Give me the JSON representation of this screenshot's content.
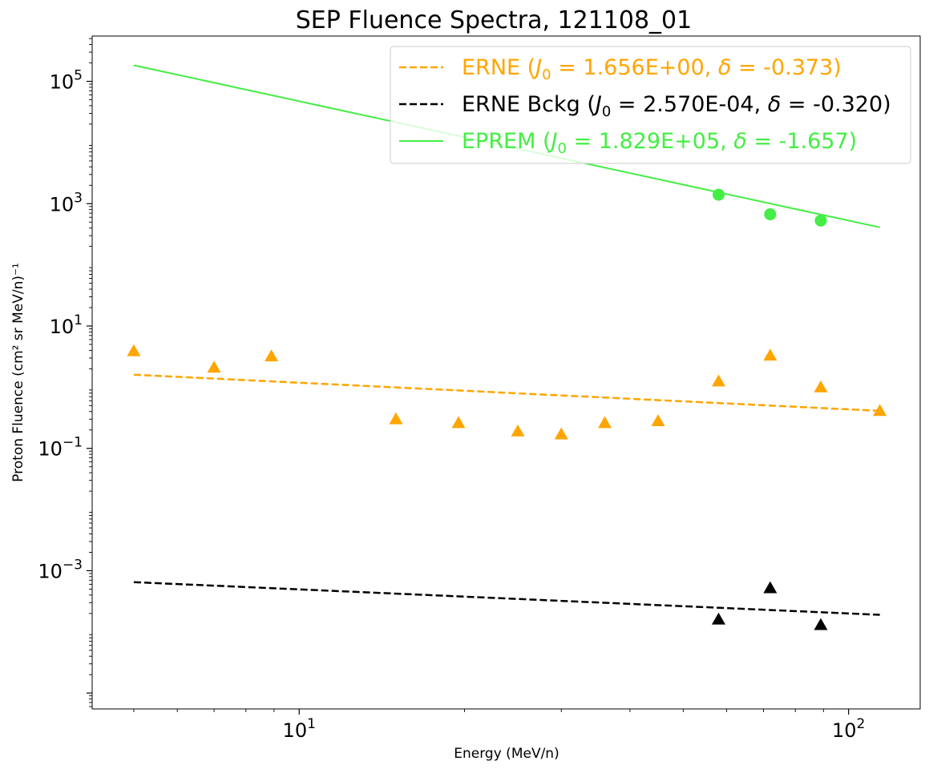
{
  "chart_data": {
    "type": "scatter",
    "title": "SEP Fluence Spectra, 121108_01",
    "xlabel": "Energy (MeV/n)",
    "ylabel": "Proton Fluence (cm² sr MeV/n)⁻¹",
    "xscale": "log",
    "yscale": "log",
    "xlim": [
      4.2,
      135
    ],
    "ylim": [
      5.5e-06,
      550000
    ],
    "x_ticks": [
      {
        "value": 10,
        "base": "10",
        "exp": "1"
      },
      {
        "value": 100,
        "base": "10",
        "exp": "2"
      }
    ],
    "y_ticks": [
      {
        "value": 0.001,
        "base": "10",
        "exp": "−3"
      },
      {
        "value": 0.1,
        "base": "10",
        "exp": "−1"
      },
      {
        "value": 10,
        "base": "10",
        "exp": "1"
      },
      {
        "value": 1000,
        "base": "10",
        "exp": "3"
      },
      {
        "value": 100000,
        "base": "10",
        "exp": "5"
      }
    ],
    "grid": false,
    "legend_position": "top-right",
    "series": [
      {
        "name": "ERNE (J₀ = 1.656E+00, δ = -0.373)",
        "color": "#ffa500",
        "marker": "triangle",
        "line_style": "dashed",
        "points": [
          {
            "x": 5.0,
            "y": 3.9
          },
          {
            "x": 7.0,
            "y": 2.1
          },
          {
            "x": 8.9,
            "y": 3.2
          },
          {
            "x": 15.0,
            "y": 0.3
          },
          {
            "x": 19.5,
            "y": 0.26
          },
          {
            "x": 25.0,
            "y": 0.19
          },
          {
            "x": 30.0,
            "y": 0.17
          },
          {
            "x": 36.0,
            "y": 0.26
          },
          {
            "x": 45.0,
            "y": 0.28
          },
          {
            "x": 58.0,
            "y": 1.25
          },
          {
            "x": 72.0,
            "y": 3.3
          },
          {
            "x": 89.0,
            "y": 1.0
          },
          {
            "x": 114.0,
            "y": 0.41
          }
        ],
        "fit_line": [
          {
            "x": 5.0,
            "y": 1.6
          },
          {
            "x": 114.0,
            "y": 0.41
          }
        ]
      },
      {
        "name": "ERNE Bckg (J₀ = 2.570E-04, δ = -0.320)",
        "color": "#000000",
        "marker": "triangle",
        "line_style": "dashed",
        "points": [
          {
            "x": 58.0,
            "y": 0.00016
          },
          {
            "x": 72.0,
            "y": 0.00052
          },
          {
            "x": 89.0,
            "y": 0.00013
          }
        ],
        "fit_line": [
          {
            "x": 5.0,
            "y": 0.00065
          },
          {
            "x": 114.0,
            "y": 0.00019
          }
        ]
      },
      {
        "name": "EPREM (J₀ = 1.829E+05, δ = -1.657)",
        "color": "#44ee44",
        "marker": "circle",
        "line_style": "solid",
        "points": [
          {
            "x": 58.0,
            "y": 1400
          },
          {
            "x": 72.0,
            "y": 670
          },
          {
            "x": 89.0,
            "y": 530
          }
        ],
        "fit_line": [
          {
            "x": 5.0,
            "y": 182900
          },
          {
            "x": 114.0,
            "y": 410
          }
        ]
      }
    ],
    "legend": [
      {
        "prefix": "ERNE (",
        "j": "J",
        "jsub": "0",
        "mid": " = 1.656E+00, ",
        "delta": "δ",
        "suffix": " = -0.373)",
        "color": "#ffa500",
        "text_color": "#ffa500",
        "line_style": "dashed"
      },
      {
        "prefix": "ERNE Bckg (",
        "j": "J",
        "jsub": "0",
        "mid": " = 2.570E-04, ",
        "delta": "δ",
        "suffix": " = -0.320)",
        "color": "#000000",
        "text_color": "#000000",
        "line_style": "dashed"
      },
      {
        "prefix": "EPREM (",
        "j": "J",
        "jsub": "0",
        "mid": " = 1.829E+05, ",
        "delta": "δ",
        "suffix": " = -1.657)",
        "color": "#44ee44",
        "text_color": "#44ee44",
        "line_style": "solid"
      }
    ]
  }
}
